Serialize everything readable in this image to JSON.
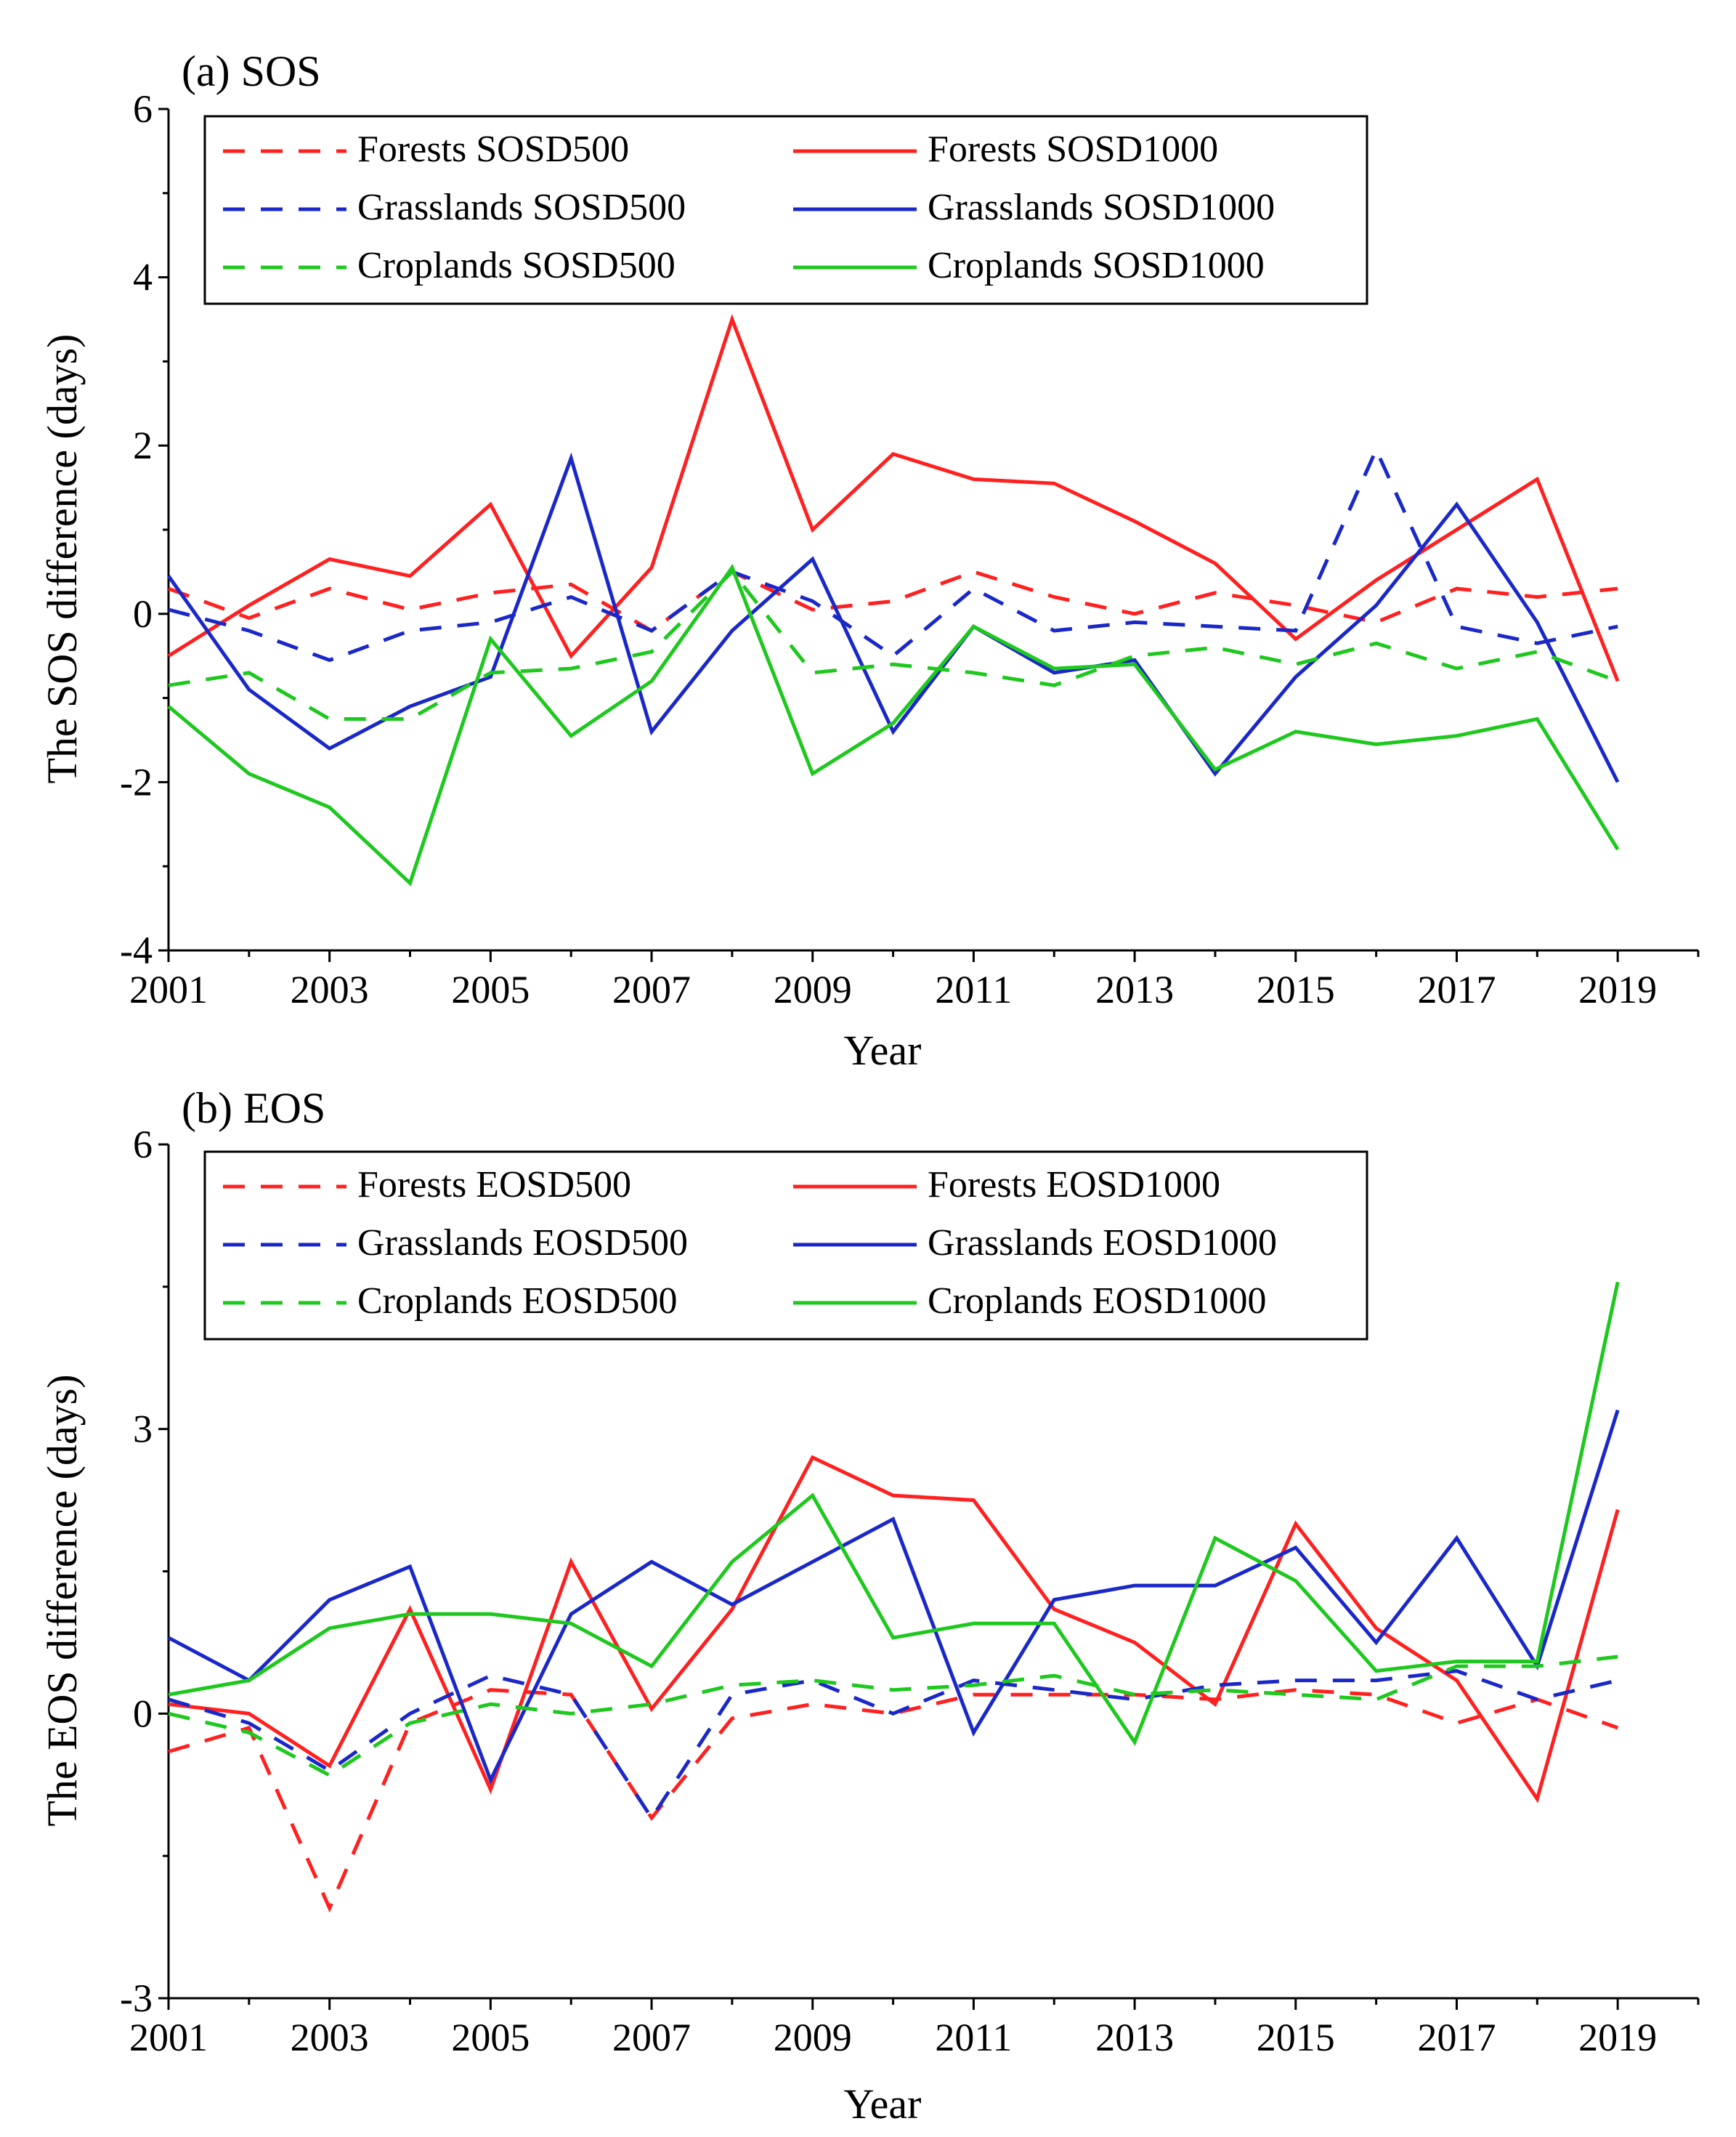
{
  "chart_data": [
    {
      "id": "sos",
      "type": "line",
      "title": "(a) SOS",
      "xlabel": "Year",
      "ylabel": "The SOS difference  (days)",
      "xlim": [
        2001,
        2020
      ],
      "ylim": [
        -4,
        6
      ],
      "xticks": [
        2001,
        2003,
        2005,
        2007,
        2009,
        2011,
        2013,
        2015,
        2017,
        2019
      ],
      "yticks": [
        -4,
        -2,
        0,
        2,
        4,
        6
      ],
      "legend_position": "top-left",
      "x": [
        2001,
        2002,
        2003,
        2004,
        2005,
        2006,
        2007,
        2008,
        2009,
        2010,
        2011,
        2012,
        2013,
        2014,
        2015,
        2016,
        2017,
        2018,
        2019
      ],
      "series": [
        {
          "name": "Forests SOSD500",
          "color": "#ff2020",
          "dashed": true,
          "values": [
            0.3,
            -0.05,
            0.3,
            0.05,
            0.25,
            0.35,
            -0.2,
            0.5,
            0.05,
            0.15,
            0.5,
            0.2,
            0.0,
            0.25,
            0.1,
            -0.1,
            0.3,
            0.2,
            0.3
          ]
        },
        {
          "name": "Forests SOSD1000",
          "color": "#ff2020",
          "dashed": false,
          "values": [
            -0.5,
            0.1,
            0.65,
            0.45,
            1.3,
            -0.5,
            0.55,
            3.5,
            1.0,
            1.9,
            1.6,
            1.55,
            1.1,
            0.6,
            -0.3,
            0.4,
            1.0,
            1.6,
            -0.8
          ]
        },
        {
          "name": "Grasslands SOSD500",
          "color": "#1a28c8",
          "dashed": true,
          "values": [
            0.05,
            -0.2,
            -0.55,
            -0.2,
            -0.1,
            0.2,
            -0.2,
            0.5,
            0.15,
            -0.5,
            0.3,
            -0.2,
            -0.1,
            -0.15,
            -0.2,
            1.95,
            -0.15,
            -0.35,
            -0.15
          ]
        },
        {
          "name": "Grasslands SOSD1000",
          "color": "#1a28c8",
          "dashed": false,
          "values": [
            0.45,
            -0.9,
            -1.6,
            -1.1,
            -0.75,
            1.85,
            -1.4,
            -0.2,
            0.65,
            -1.4,
            -0.15,
            -0.7,
            -0.55,
            -1.9,
            -0.75,
            0.1,
            1.3,
            -0.1,
            -2.0
          ]
        },
        {
          "name": "Croplands SOSD500",
          "color": "#1ec81e",
          "dashed": true,
          "values": [
            -0.85,
            -0.7,
            -1.25,
            -1.25,
            -0.7,
            -0.65,
            -0.45,
            0.5,
            -0.7,
            -0.6,
            -0.7,
            -0.85,
            -0.5,
            -0.4,
            -0.6,
            -0.35,
            -0.65,
            -0.45,
            -0.8
          ]
        },
        {
          "name": "Croplands SOSD1000",
          "color": "#1ec81e",
          "dashed": false,
          "values": [
            -1.1,
            -1.9,
            -2.3,
            -3.2,
            -0.3,
            -1.45,
            -0.8,
            0.55,
            -1.9,
            -1.3,
            -0.15,
            -0.65,
            -0.6,
            -1.85,
            -1.4,
            -1.55,
            -1.45,
            -1.25,
            -2.8
          ]
        }
      ]
    },
    {
      "id": "eos",
      "type": "line",
      "title": "(b) EOS",
      "xlabel": "Year",
      "ylabel": "The EOS difference  (days)",
      "xlim": [
        2001,
        2020
      ],
      "ylim": [
        -3,
        6
      ],
      "xticks": [
        2001,
        2003,
        2005,
        2007,
        2009,
        2011,
        2013,
        2015,
        2017,
        2019
      ],
      "yticks": [
        -3,
        0,
        3,
        6
      ],
      "legend_position": "top-left",
      "x": [
        2001,
        2002,
        2003,
        2004,
        2005,
        2006,
        2007,
        2008,
        2009,
        2010,
        2011,
        2012,
        2013,
        2014,
        2015,
        2016,
        2017,
        2018,
        2019
      ],
      "series": [
        {
          "name": "Forests EOSD500",
          "color": "#ff2020",
          "dashed": true,
          "values": [
            -0.4,
            -0.15,
            -2.05,
            -0.1,
            0.25,
            0.2,
            -1.1,
            -0.05,
            0.1,
            0.0,
            0.2,
            0.2,
            0.2,
            0.15,
            0.25,
            0.2,
            -0.1,
            0.15,
            -0.15
          ]
        },
        {
          "name": "Forests EOSD1000",
          "color": "#ff2020",
          "dashed": false,
          "values": [
            0.1,
            0.0,
            -0.55,
            1.1,
            -0.8,
            1.6,
            0.05,
            1.1,
            2.7,
            2.3,
            2.25,
            1.1,
            0.75,
            0.1,
            2.0,
            0.9,
            0.35,
            -0.9,
            2.15
          ]
        },
        {
          "name": "Grasslands EOSD500",
          "color": "#1a28c8",
          "dashed": true,
          "values": [
            0.15,
            -0.1,
            -0.6,
            0.0,
            0.4,
            0.2,
            -1.1,
            0.2,
            0.35,
            0.0,
            0.35,
            0.25,
            0.15,
            0.3,
            0.35,
            0.35,
            0.45,
            0.15,
            0.35
          ]
        },
        {
          "name": "Grasslands EOSD1000",
          "color": "#1a28c8",
          "dashed": false,
          "values": [
            0.8,
            0.35,
            1.2,
            1.55,
            -0.7,
            1.05,
            1.6,
            1.15,
            1.6,
            2.05,
            -0.2,
            1.2,
            1.35,
            1.35,
            1.75,
            0.75,
            1.85,
            0.5,
            3.2
          ]
        },
        {
          "name": "Croplands EOSD500",
          "color": "#1ec81e",
          "dashed": true,
          "values": [
            0.0,
            -0.2,
            -0.65,
            -0.1,
            0.1,
            0.0,
            0.1,
            0.3,
            0.35,
            0.25,
            0.3,
            0.4,
            0.2,
            0.25,
            0.2,
            0.15,
            0.5,
            0.5,
            0.6
          ]
        },
        {
          "name": "Croplands EOSD1000",
          "color": "#1ec81e",
          "dashed": false,
          "values": [
            0.2,
            0.35,
            0.9,
            1.05,
            1.05,
            0.95,
            0.5,
            1.6,
            2.3,
            0.8,
            0.95,
            0.95,
            -0.3,
            1.85,
            1.4,
            0.45,
            0.55,
            0.55,
            4.55
          ]
        }
      ]
    }
  ]
}
